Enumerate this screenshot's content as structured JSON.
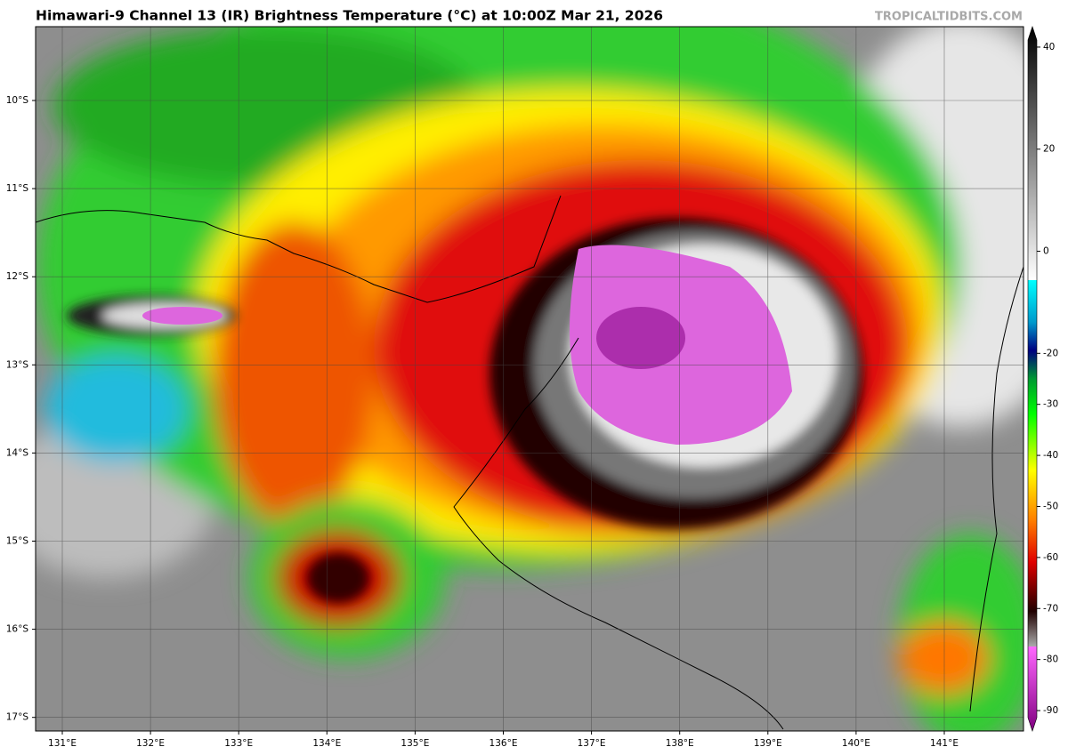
{
  "header": {
    "title": "Himawari-9 Channel 13 (IR) Brightness Temperature (°C) at 10:00Z Mar 21, 2026",
    "credit": "TROPICALTIDBITS.COM"
  },
  "map": {
    "lon_ticks": [
      "131°E",
      "132°E",
      "133°E",
      "134°E",
      "135°E",
      "136°E",
      "137°E",
      "138°E",
      "139°E",
      "140°E",
      "141°E"
    ],
    "lat_ticks": [
      "10°S",
      "11°S",
      "12°S",
      "13°S",
      "14°S",
      "15°S",
      "16°S",
      "17°S"
    ]
  },
  "colorbar": {
    "lim": [
      -94,
      44
    ],
    "ticks": [
      40,
      20,
      0,
      -20,
      -30,
      -40,
      -50,
      -60,
      -70,
      -80,
      -90
    ]
  }
}
